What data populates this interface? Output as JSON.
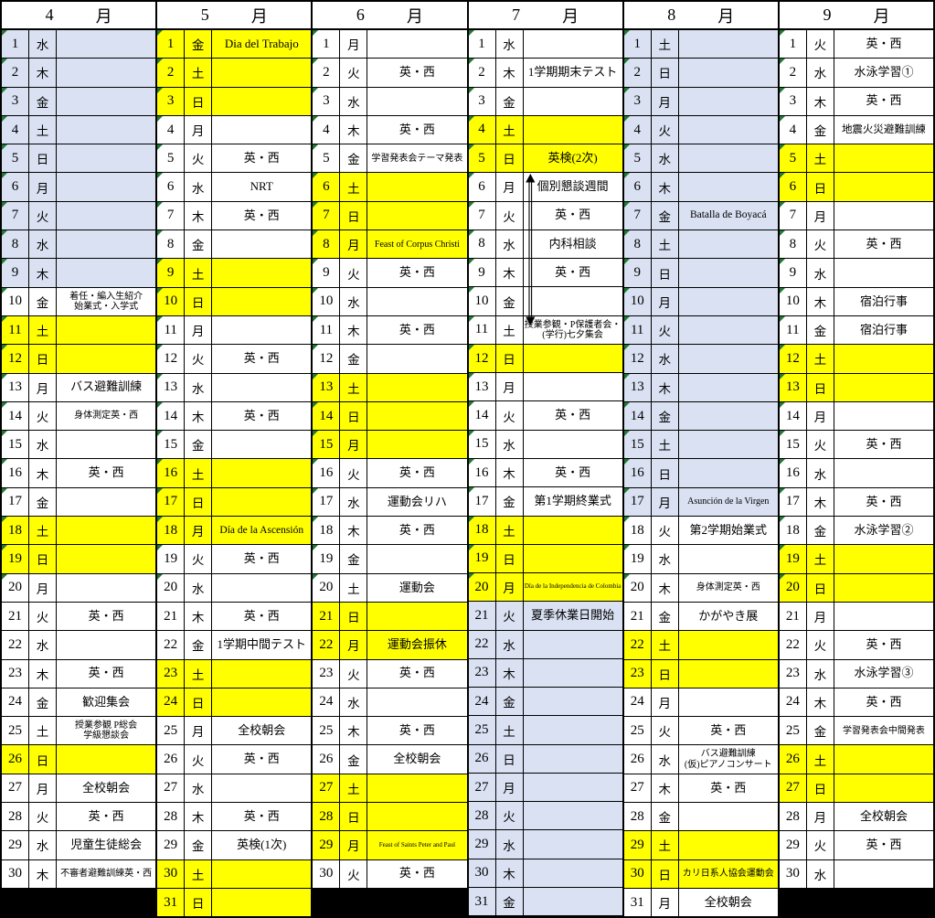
{
  "calendar": {
    "colors": {
      "yellow": "#ffff00",
      "blue": "#d9e1f2",
      "black": "#000000",
      "marker": "#217a36",
      "border": "#000000"
    },
    "marker_day_limit": 20,
    "consultation_week_arrow": {
      "month": "7",
      "from_day": 6,
      "to_day": 11
    },
    "months": [
      {
        "num": "4",
        "suffix": "月",
        "days": [
          {
            "d": "1",
            "w": "水",
            "bg": "b"
          },
          {
            "d": "2",
            "w": "木",
            "bg": "b"
          },
          {
            "d": "3",
            "w": "金",
            "bg": "b"
          },
          {
            "d": "4",
            "w": "土",
            "bg": "b"
          },
          {
            "d": "5",
            "w": "日",
            "bg": "b"
          },
          {
            "d": "6",
            "w": "月",
            "bg": "b"
          },
          {
            "d": "7",
            "w": "火",
            "bg": "b"
          },
          {
            "d": "8",
            "w": "水",
            "bg": "b"
          },
          {
            "d": "9",
            "w": "木",
            "bg": "b"
          },
          {
            "d": "10",
            "w": "金",
            "ev": "着任・編入生紹介\n始業式・入学式",
            "sz": "s"
          },
          {
            "d": "11",
            "w": "土",
            "bg": "y"
          },
          {
            "d": "12",
            "w": "日",
            "bg": "y"
          },
          {
            "d": "13",
            "w": "月",
            "ev": "バス避難訓練"
          },
          {
            "d": "14",
            "w": "火",
            "ev": "身体測定英・西",
            "sz": "s"
          },
          {
            "d": "15",
            "w": "水"
          },
          {
            "d": "16",
            "w": "木",
            "ev": "英・西"
          },
          {
            "d": "17",
            "w": "金"
          },
          {
            "d": "18",
            "w": "土",
            "bg": "y"
          },
          {
            "d": "19",
            "w": "日",
            "bg": "y"
          },
          {
            "d": "20",
            "w": "月"
          },
          {
            "d": "21",
            "w": "火",
            "ev": "英・西"
          },
          {
            "d": "22",
            "w": "水"
          },
          {
            "d": "23",
            "w": "木",
            "ev": "英・西"
          },
          {
            "d": "24",
            "w": "金",
            "ev": "歓迎集会"
          },
          {
            "d": "25",
            "w": "土",
            "ev": "授業参観 P総会\n学級懇談会",
            "sz": "s"
          },
          {
            "d": "26",
            "w": "日",
            "bg": "y"
          },
          {
            "d": "27",
            "w": "月",
            "ev": "全校朝会"
          },
          {
            "d": "28",
            "w": "火",
            "ev": "英・西"
          },
          {
            "d": "29",
            "w": "水",
            "ev": "児童生徒総会"
          },
          {
            "d": "30",
            "w": "木",
            "ev": "不審者避難訓練英・西",
            "sz": "s"
          },
          {
            "fill": true
          }
        ]
      },
      {
        "num": "5",
        "suffix": "月",
        "days": [
          {
            "d": "1",
            "w": "金",
            "bg": "y",
            "ev": "Dia del Trabajo"
          },
          {
            "d": "2",
            "w": "土",
            "bg": "y"
          },
          {
            "d": "3",
            "w": "日",
            "bg": "y"
          },
          {
            "d": "4",
            "w": "月"
          },
          {
            "d": "5",
            "w": "火",
            "ev": "英・西"
          },
          {
            "d": "6",
            "w": "水",
            "ev": "NRT"
          },
          {
            "d": "7",
            "w": "木",
            "ev": "英・西"
          },
          {
            "d": "8",
            "w": "金"
          },
          {
            "d": "9",
            "w": "土",
            "bg": "y"
          },
          {
            "d": "10",
            "w": "日",
            "bg": "y"
          },
          {
            "d": "11",
            "w": "月"
          },
          {
            "d": "12",
            "w": "火",
            "ev": "英・西"
          },
          {
            "d": "13",
            "w": "水"
          },
          {
            "d": "14",
            "w": "木",
            "ev": "英・西"
          },
          {
            "d": "15",
            "w": "金"
          },
          {
            "d": "16",
            "w": "土",
            "bg": "y"
          },
          {
            "d": "17",
            "w": "日",
            "bg": "y"
          },
          {
            "d": "18",
            "w": "月",
            "bg": "y",
            "ev": "Día de la Ascensión",
            "sz": "m"
          },
          {
            "d": "19",
            "w": "火",
            "ev": "英・西"
          },
          {
            "d": "20",
            "w": "水"
          },
          {
            "d": "21",
            "w": "木",
            "ev": "英・西"
          },
          {
            "d": "22",
            "w": "金",
            "ev": "1学期中間テスト"
          },
          {
            "d": "23",
            "w": "土",
            "bg": "y"
          },
          {
            "d": "24",
            "w": "日",
            "bg": "y"
          },
          {
            "d": "25",
            "w": "月",
            "ev": "全校朝会"
          },
          {
            "d": "26",
            "w": "火",
            "ev": "英・西"
          },
          {
            "d": "27",
            "w": "水"
          },
          {
            "d": "28",
            "w": "木",
            "ev": "英・西"
          },
          {
            "d": "29",
            "w": "金",
            "ev": "英検(1次)"
          },
          {
            "d": "30",
            "w": "土",
            "bg": "y"
          },
          {
            "d": "31",
            "w": "日",
            "bg": "y"
          }
        ]
      },
      {
        "num": "6",
        "suffix": "月",
        "days": [
          {
            "d": "1",
            "w": "月"
          },
          {
            "d": "2",
            "w": "火",
            "ev": "英・西"
          },
          {
            "d": "3",
            "w": "水"
          },
          {
            "d": "4",
            "w": "木",
            "ev": "英・西"
          },
          {
            "d": "5",
            "w": "金",
            "ev": "学習発表会テーマ発表",
            "sz": "s"
          },
          {
            "d": "6",
            "w": "土",
            "bg": "y"
          },
          {
            "d": "7",
            "w": "日",
            "bg": "y"
          },
          {
            "d": "8",
            "w": "月",
            "bg": "y",
            "ev": "Feast of Corpus Christi",
            "sz": "s"
          },
          {
            "d": "9",
            "w": "火",
            "ev": "英・西"
          },
          {
            "d": "10",
            "w": "水"
          },
          {
            "d": "11",
            "w": "木",
            "ev": "英・西"
          },
          {
            "d": "12",
            "w": "金"
          },
          {
            "d": "13",
            "w": "土",
            "bg": "y"
          },
          {
            "d": "14",
            "w": "日",
            "bg": "y"
          },
          {
            "d": "15",
            "w": "月",
            "bg": "y"
          },
          {
            "d": "16",
            "w": "火",
            "ev": "英・西"
          },
          {
            "d": "17",
            "w": "水",
            "ev": "運動会リハ"
          },
          {
            "d": "18",
            "w": "木",
            "ev": "英・西"
          },
          {
            "d": "19",
            "w": "金"
          },
          {
            "d": "20",
            "w": "土",
            "ev": "運動会"
          },
          {
            "d": "21",
            "w": "日",
            "bg": "y"
          },
          {
            "d": "22",
            "w": "月",
            "bg": "y",
            "ev": "運動会振休"
          },
          {
            "d": "23",
            "w": "火",
            "ev": "英・西"
          },
          {
            "d": "24",
            "w": "水"
          },
          {
            "d": "25",
            "w": "木",
            "ev": "英・西"
          },
          {
            "d": "26",
            "w": "金",
            "ev": "全校朝会"
          },
          {
            "d": "27",
            "w": "土",
            "bg": "y"
          },
          {
            "d": "28",
            "w": "日",
            "bg": "y"
          },
          {
            "d": "29",
            "w": "月",
            "bg": "y",
            "ev": "Feast of Saints Peter and Paul",
            "sz": "xs"
          },
          {
            "d": "30",
            "w": "火",
            "ev": "英・西"
          },
          {
            "fill": true
          }
        ]
      },
      {
        "num": "7",
        "suffix": "月",
        "days": [
          {
            "d": "1",
            "w": "水"
          },
          {
            "d": "2",
            "w": "木",
            "ev": "1学期期末テスト"
          },
          {
            "d": "3",
            "w": "金"
          },
          {
            "d": "4",
            "w": "土",
            "bg": "y"
          },
          {
            "d": "5",
            "w": "日",
            "bg": "y",
            "ev": "英検(2次)"
          },
          {
            "d": "6",
            "w": "月",
            "ev": "個別懇談週間"
          },
          {
            "d": "7",
            "w": "火",
            "ev": "英・西"
          },
          {
            "d": "8",
            "w": "水",
            "ev": "内科相談"
          },
          {
            "d": "9",
            "w": "木",
            "ev": "英・西"
          },
          {
            "d": "10",
            "w": "金"
          },
          {
            "d": "11",
            "w": "土",
            "ev": "授業参観・P保護者会・\n(学行)七夕集会",
            "sz": "s"
          },
          {
            "d": "12",
            "w": "日",
            "bg": "y"
          },
          {
            "d": "13",
            "w": "月"
          },
          {
            "d": "14",
            "w": "火",
            "ev": "英・西"
          },
          {
            "d": "15",
            "w": "水"
          },
          {
            "d": "16",
            "w": "木",
            "ev": "英・西"
          },
          {
            "d": "17",
            "w": "金",
            "ev": "第1学期終業式"
          },
          {
            "d": "18",
            "w": "土",
            "bg": "y"
          },
          {
            "d": "19",
            "w": "日",
            "bg": "y"
          },
          {
            "d": "20",
            "w": "月",
            "bg": "y",
            "ev": "Día de la Independencia de Colombia",
            "sz": "xs"
          },
          {
            "d": "21",
            "w": "火",
            "bg": "b",
            "ev": "夏季休業日開始"
          },
          {
            "d": "22",
            "w": "水",
            "bg": "b"
          },
          {
            "d": "23",
            "w": "木",
            "bg": "b"
          },
          {
            "d": "24",
            "w": "金",
            "bg": "b"
          },
          {
            "d": "25",
            "w": "土",
            "bg": "b"
          },
          {
            "d": "26",
            "w": "日",
            "bg": "b"
          },
          {
            "d": "27",
            "w": "月",
            "bg": "b"
          },
          {
            "d": "28",
            "w": "火",
            "bg": "b"
          },
          {
            "d": "29",
            "w": "水",
            "bg": "b"
          },
          {
            "d": "30",
            "w": "木",
            "bg": "b"
          },
          {
            "d": "31",
            "w": "金",
            "bg": "b"
          }
        ]
      },
      {
        "num": "8",
        "suffix": "月",
        "days": [
          {
            "d": "1",
            "w": "土",
            "bg": "b"
          },
          {
            "d": "2",
            "w": "日",
            "bg": "b"
          },
          {
            "d": "3",
            "w": "月",
            "bg": "b"
          },
          {
            "d": "4",
            "w": "火",
            "bg": "b"
          },
          {
            "d": "5",
            "w": "水",
            "bg": "b"
          },
          {
            "d": "6",
            "w": "木",
            "bg": "b"
          },
          {
            "d": "7",
            "w": "金",
            "bg": "b",
            "ev": "Batalla de Boyacá",
            "sz": "m"
          },
          {
            "d": "8",
            "w": "土",
            "bg": "b"
          },
          {
            "d": "9",
            "w": "日",
            "bg": "b"
          },
          {
            "d": "10",
            "w": "月",
            "bg": "b"
          },
          {
            "d": "11",
            "w": "火",
            "bg": "b"
          },
          {
            "d": "12",
            "w": "水",
            "bg": "b"
          },
          {
            "d": "13",
            "w": "木",
            "bg": "b"
          },
          {
            "d": "14",
            "w": "金",
            "bg": "b"
          },
          {
            "d": "15",
            "w": "土",
            "bg": "b"
          },
          {
            "d": "16",
            "w": "日",
            "bg": "b"
          },
          {
            "d": "17",
            "w": "月",
            "bg": "b",
            "ev": "Asunción de la Virgen",
            "sz": "s"
          },
          {
            "d": "18",
            "w": "火",
            "ev": "第2学期始業式"
          },
          {
            "d": "19",
            "w": "水"
          },
          {
            "d": "20",
            "w": "木",
            "ev": "身体測定英・西",
            "sz": "s"
          },
          {
            "d": "21",
            "w": "金",
            "ev": "かがやき展"
          },
          {
            "d": "22",
            "w": "土",
            "bg": "y"
          },
          {
            "d": "23",
            "w": "日",
            "bg": "y"
          },
          {
            "d": "24",
            "w": "月"
          },
          {
            "d": "25",
            "w": "火",
            "ev": "英・西"
          },
          {
            "d": "26",
            "w": "水",
            "ev": "バス避難訓練\n(仮)ピアノコンサート",
            "sz": "s"
          },
          {
            "d": "27",
            "w": "木",
            "ev": "英・西"
          },
          {
            "d": "28",
            "w": "金"
          },
          {
            "d": "29",
            "w": "土",
            "bg": "y"
          },
          {
            "d": "30",
            "w": "日",
            "bg": "y",
            "ev": "カリ日系人協会運動会",
            "sz": "s"
          },
          {
            "d": "31",
            "w": "月",
            "ev": "全校朝会"
          }
        ]
      },
      {
        "num": "9",
        "suffix": "月",
        "days": [
          {
            "d": "1",
            "w": "火",
            "ev": "英・西"
          },
          {
            "d": "2",
            "w": "水",
            "ev": "水泳学習①"
          },
          {
            "d": "3",
            "w": "木",
            "ev": "英・西"
          },
          {
            "d": "4",
            "w": "金",
            "ev": "地震火災避難訓練",
            "sz": "m"
          },
          {
            "d": "5",
            "w": "土",
            "bg": "y"
          },
          {
            "d": "6",
            "w": "日",
            "bg": "y"
          },
          {
            "d": "7",
            "w": "月"
          },
          {
            "d": "8",
            "w": "火",
            "ev": "英・西"
          },
          {
            "d": "9",
            "w": "水"
          },
          {
            "d": "10",
            "w": "木",
            "ev": "宿泊行事"
          },
          {
            "d": "11",
            "w": "金",
            "ev": "宿泊行事"
          },
          {
            "d": "12",
            "w": "土",
            "bg": "y"
          },
          {
            "d": "13",
            "w": "日",
            "bg": "y"
          },
          {
            "d": "14",
            "w": "月"
          },
          {
            "d": "15",
            "w": "火",
            "ev": "英・西"
          },
          {
            "d": "16",
            "w": "水"
          },
          {
            "d": "17",
            "w": "木",
            "ev": "英・西"
          },
          {
            "d": "18",
            "w": "金",
            "ev": "水泳学習②"
          },
          {
            "d": "19",
            "w": "土",
            "bg": "y"
          },
          {
            "d": "20",
            "w": "日",
            "bg": "y"
          },
          {
            "d": "21",
            "w": "月"
          },
          {
            "d": "22",
            "w": "火",
            "ev": "英・西"
          },
          {
            "d": "23",
            "w": "水",
            "ev": "水泳学習③"
          },
          {
            "d": "24",
            "w": "木",
            "ev": "英・西"
          },
          {
            "d": "25",
            "w": "金",
            "ev": "学習発表会中間発表",
            "sz": "s"
          },
          {
            "d": "26",
            "w": "土",
            "bg": "y"
          },
          {
            "d": "27",
            "w": "日",
            "bg": "y"
          },
          {
            "d": "28",
            "w": "月",
            "ev": "全校朝会"
          },
          {
            "d": "29",
            "w": "火",
            "ev": "英・西"
          },
          {
            "d": "30",
            "w": "水"
          },
          {
            "fill": true
          }
        ]
      }
    ]
  }
}
